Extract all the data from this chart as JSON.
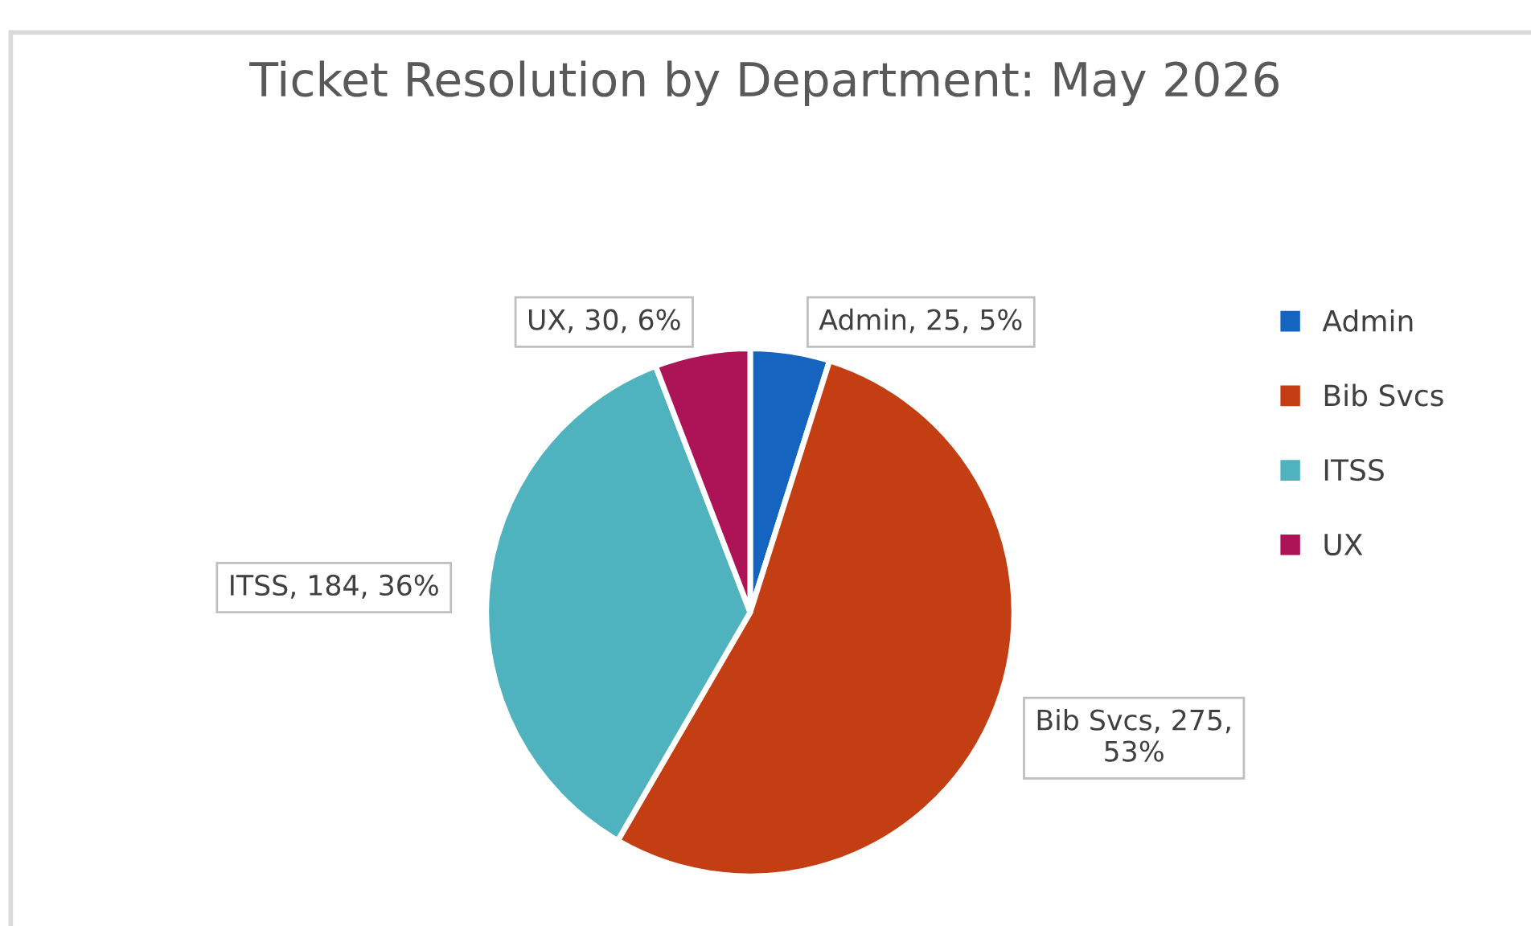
{
  "chart_data": {
    "type": "pie",
    "title": "Ticket Resolution by Department: May 2026",
    "categories": [
      "Admin",
      "Bib Svcs",
      "ITSS",
      "UX"
    ],
    "values": [
      25,
      275,
      184,
      30
    ],
    "colors": [
      "#1565c0",
      "#c43e14",
      "#4fb3bf",
      "#ad1457"
    ],
    "value_labels": [
      "Admin, 25, 5%",
      "Bib Svcs, 275, 53%",
      "ITSS, 184, 36%",
      "UX, 30, 6%"
    ],
    "legend": "right"
  }
}
